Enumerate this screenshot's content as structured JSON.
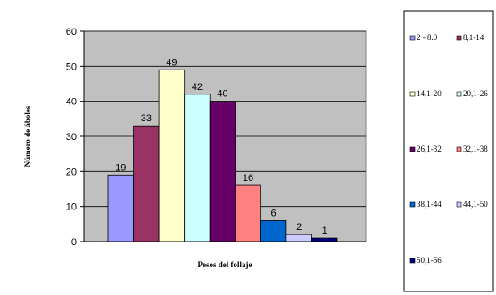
{
  "chart_data": {
    "type": "bar",
    "xlabel": "Pesos del follaje",
    "ylabel": "Número de áboles",
    "ylim": [
      0,
      60
    ],
    "yticks": [
      0,
      10,
      20,
      30,
      40,
      50,
      60
    ],
    "grid": true,
    "legend_position": "right",
    "plot_background": "#c0c0c0",
    "series": [
      {
        "name": "2 - 8.0",
        "value": 19,
        "color": "#9999ff"
      },
      {
        "name": "8,1-14",
        "value": 33,
        "color": "#993366"
      },
      {
        "name": "14,1-20",
        "value": 49,
        "color": "#ffffcc"
      },
      {
        "name": "20,1-26",
        "value": 42,
        "color": "#ccffff"
      },
      {
        "name": "26,1-32",
        "value": 40,
        "color": "#660066"
      },
      {
        "name": "32,1-38",
        "value": 16,
        "color": "#ff8080"
      },
      {
        "name": "38,1-44",
        "value": 6,
        "color": "#0066cc"
      },
      {
        "name": "44,1-50",
        "value": 2,
        "color": "#ccccff"
      },
      {
        "name": "50,1-56",
        "value": 1,
        "color": "#000080"
      }
    ]
  }
}
